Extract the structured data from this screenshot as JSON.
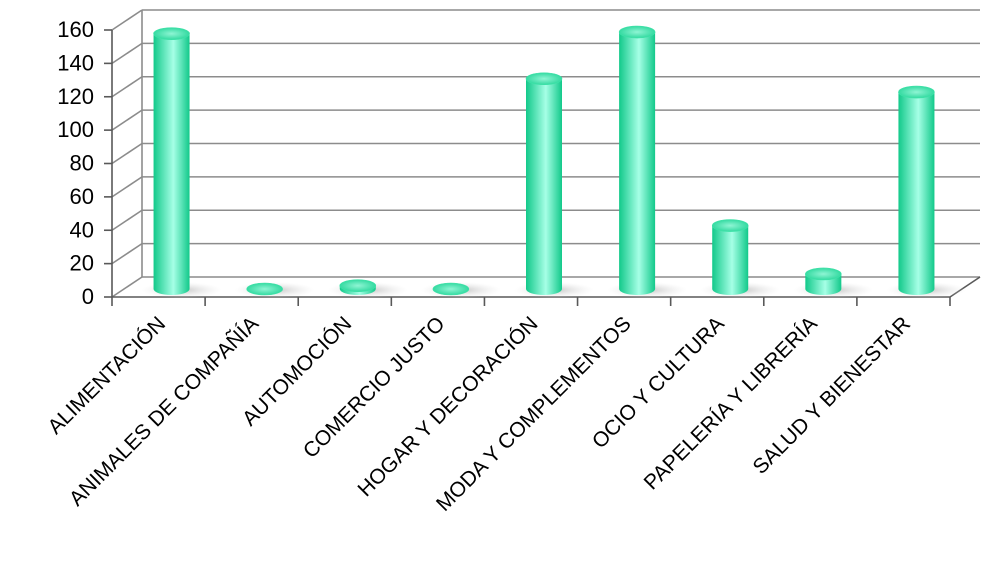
{
  "chart_data": {
    "type": "bar",
    "style": "3d-cylinder",
    "categories": [
      "ALIMENTACIÓN",
      "ANIMALES DE COMPAÑÍA",
      "AUTOMOCIÓN",
      "COMERCIO JUSTO",
      "HOGAR Y DECORACIÓN",
      "MODA Y COMPLEMENTOS",
      "OCIO Y CULTURA",
      "PAPELERÍA Y LIBRERÍA",
      "SALUD Y BIENESTAR"
    ],
    "values": [
      153,
      0,
      2,
      0,
      126,
      154,
      38,
      9,
      118
    ],
    "ylim": [
      0,
      160
    ],
    "yticks": [
      "0",
      "20",
      "40",
      "60",
      "80",
      "100",
      "120",
      "140",
      "160"
    ],
    "grid": true,
    "legend": "none",
    "title": "",
    "xlabel": "",
    "ylabel": "",
    "colors": {
      "bar_dark": "#12c98a",
      "bar_light": "#a6ffe6",
      "grid": "#8c8c8c",
      "axis": "#595959"
    }
  }
}
